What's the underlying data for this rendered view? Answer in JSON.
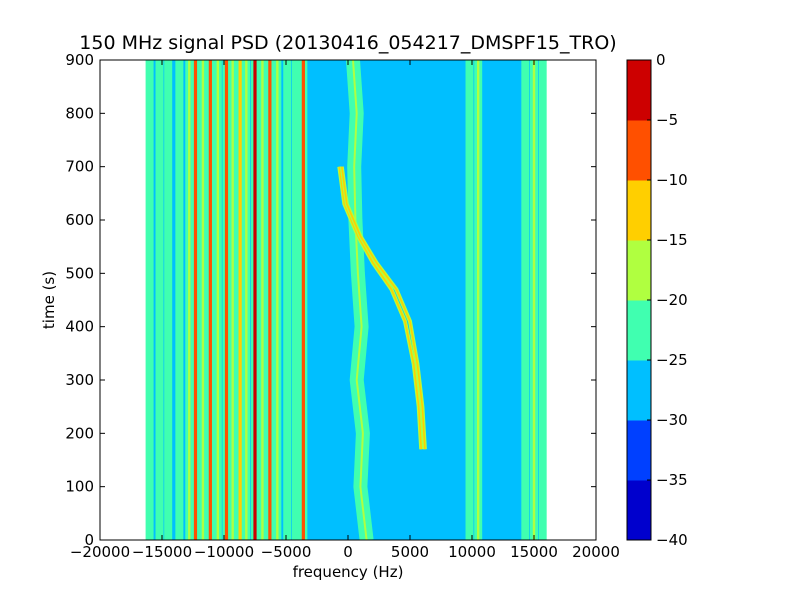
{
  "chart_data": {
    "type": "heatmap",
    "title": "150 MHz signal PSD (20130416_054217_DMSPF15_TRO)",
    "xlabel": "frequency (Hz)",
    "ylabel": "time (s)",
    "xlim": [
      -20000,
      20000
    ],
    "ylim": [
      0,
      900
    ],
    "x_ticks": [
      -20000,
      -15000,
      -10000,
      -5000,
      0,
      5000,
      10000,
      15000,
      20000
    ],
    "x_tick_labels": [
      "−20000",
      "−15000",
      "−10000",
      "−5000",
      "0",
      "5000",
      "10000",
      "15000",
      "20000"
    ],
    "y_ticks": [
      0,
      100,
      200,
      300,
      400,
      500,
      600,
      700,
      800,
      900
    ],
    "y_tick_labels": [
      "0",
      "100",
      "200",
      "300",
      "400",
      "500",
      "600",
      "700",
      "800",
      "900"
    ],
    "data_x_range": [
      -16000,
      16000
    ],
    "background_level": -27.5,
    "colorbar": {
      "min": -40,
      "max": 0,
      "levels": [
        -40,
        -35,
        -30,
        -25,
        -20,
        -15,
        -10,
        -5,
        0
      ],
      "tick_labels": [
        "−40",
        "−35",
        "−30",
        "−25",
        "−20",
        "−15",
        "−10",
        "−5",
        "0"
      ],
      "colors": [
        "#0000cd",
        "#0040ff",
        "#00bfff",
        "#40ffb0",
        "#b0ff40",
        "#ffcf00",
        "#ff5000",
        "#cd0000"
      ]
    },
    "static_lines": [
      {
        "f": -16000,
        "level": -22
      },
      {
        "f": -15200,
        "level": -22
      },
      {
        "f": -14500,
        "level": -22
      },
      {
        "f": -13600,
        "level": -22
      },
      {
        "f": -12800,
        "level": -18
      },
      {
        "f": -12300,
        "level": -6
      },
      {
        "f": -11700,
        "level": -18
      },
      {
        "f": -11100,
        "level": -9
      },
      {
        "f": -10500,
        "level": -18
      },
      {
        "f": -9800,
        "level": -9
      },
      {
        "f": -9300,
        "level": -18
      },
      {
        "f": -8700,
        "level": -13
      },
      {
        "f": -8200,
        "level": -18
      },
      {
        "f": -7500,
        "level": -2
      },
      {
        "f": -6900,
        "level": -18
      },
      {
        "f": -6300,
        "level": -6
      },
      {
        "f": -5700,
        "level": -18
      },
      {
        "f": -4900,
        "level": -22
      },
      {
        "f": -4200,
        "level": -22
      },
      {
        "f": -3600,
        "level": -9
      },
      {
        "f": 9800,
        "level": -22
      },
      {
        "f": 10500,
        "level": -18
      },
      {
        "f": 14300,
        "level": -22
      },
      {
        "f": 15000,
        "level": -18
      },
      {
        "f": 15700,
        "level": -22
      }
    ],
    "wandering_carrier": {
      "level": -22,
      "points": [
        [
          1500,
          0
        ],
        [
          1000,
          100
        ],
        [
          1200,
          200
        ],
        [
          700,
          300
        ],
        [
          1100,
          400
        ],
        [
          800,
          500
        ],
        [
          600,
          600
        ],
        [
          500,
          700
        ],
        [
          700,
          800
        ],
        [
          400,
          900
        ]
      ]
    },
    "doppler_traces": [
      {
        "level": -12,
        "points": [
          [
            5900,
            170
          ],
          [
            5700,
            250
          ],
          [
            5300,
            330
          ],
          [
            4600,
            410
          ],
          [
            3500,
            470
          ],
          [
            2000,
            520
          ],
          [
            800,
            570
          ],
          [
            -300,
            630
          ],
          [
            -700,
            700
          ]
        ]
      },
      {
        "level": -12,
        "points": [
          [
            6200,
            170
          ],
          [
            6000,
            250
          ],
          [
            5600,
            330
          ],
          [
            5000,
            410
          ],
          [
            3900,
            470
          ],
          [
            2300,
            520
          ],
          [
            1000,
            570
          ],
          [
            -100,
            630
          ],
          [
            -500,
            700
          ]
        ]
      }
    ]
  }
}
